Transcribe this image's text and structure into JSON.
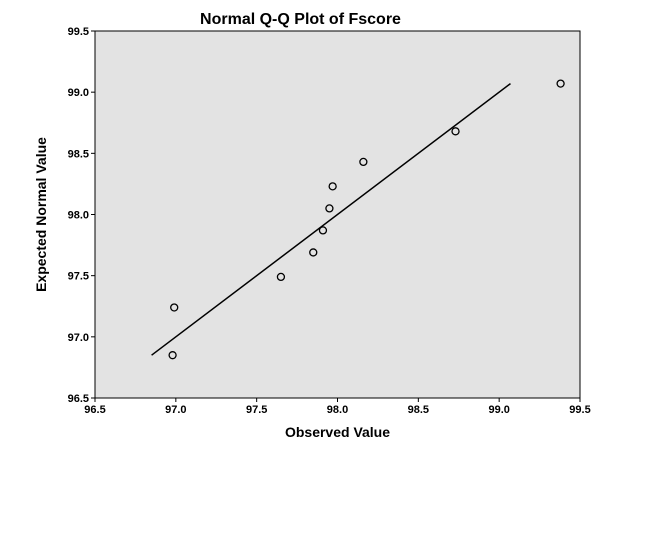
{
  "chart_data": {
    "type": "scatter",
    "title": "Normal Q-Q Plot of Fscore",
    "xlabel": "Observed Value",
    "ylabel": "Expected Normal Value",
    "xlim": [
      96.5,
      99.5
    ],
    "ylim": [
      96.5,
      99.5
    ],
    "x_ticks": [
      "96.5",
      "97.0",
      "97.5",
      "98.0",
      "98.5",
      "99.0",
      "99.5"
    ],
    "y_ticks": [
      "96.5",
      "97.0",
      "97.5",
      "98.0",
      "98.5",
      "99.0",
      "99.5"
    ],
    "points": [
      {
        "x": 96.98,
        "y": 96.85
      },
      {
        "x": 96.99,
        "y": 97.24
      },
      {
        "x": 97.65,
        "y": 97.49
      },
      {
        "x": 97.85,
        "y": 97.69
      },
      {
        "x": 97.91,
        "y": 97.87
      },
      {
        "x": 97.95,
        "y": 98.05
      },
      {
        "x": 97.97,
        "y": 98.23
      },
      {
        "x": 98.16,
        "y": 98.43
      },
      {
        "x": 98.73,
        "y": 98.68
      },
      {
        "x": 99.38,
        "y": 99.07
      }
    ],
    "reference_line": {
      "x": [
        96.85,
        99.07
      ],
      "y": [
        96.85,
        99.07
      ]
    },
    "grid": false,
    "legend": "none",
    "colors": {
      "plot_background": "#e3e3e3",
      "marker_stroke": "#000000",
      "line": "#000000"
    }
  }
}
